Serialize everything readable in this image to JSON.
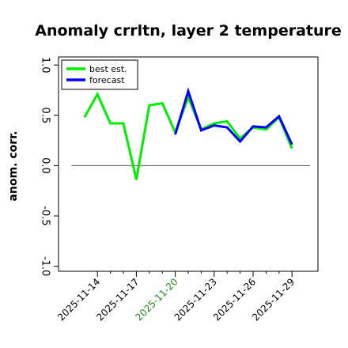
{
  "chart_data": {
    "type": "line",
    "title": "Anomaly crrltn, layer 2 temperature",
    "ylabel": "anom. corr.",
    "xlabel": "",
    "ylim": [
      -1.05,
      1.08
    ],
    "yticks": [
      -1.0,
      -0.5,
      0.0,
      0.5,
      1.0
    ],
    "ytick_labels": [
      "-1.0",
      "-0.5",
      "0.0",
      "0.5",
      "1.0"
    ],
    "xlim": [
      0,
      20
    ],
    "x": [
      2,
      3,
      4,
      5,
      6,
      7,
      8,
      9,
      10,
      11,
      12,
      13,
      14,
      15,
      16,
      17,
      18,
      19
    ],
    "xtick_labels": [
      {
        "pos": 3,
        "label": "2025-11-14",
        "color": "#000000"
      },
      {
        "pos": 6,
        "label": "2025-11-17",
        "color": "#000000"
      },
      {
        "pos": 9,
        "label": "2025-11-20",
        "color": "#228b22"
      },
      {
        "pos": 12,
        "label": "2025-11-23",
        "color": "#000000"
      },
      {
        "pos": 15,
        "label": "2025-11-26",
        "color": "#000000"
      },
      {
        "pos": 18,
        "label": "2025-11-29",
        "color": "#000000"
      }
    ],
    "zero_line": 0.0,
    "grid": false,
    "legend_position": "top-left",
    "series": [
      {
        "name": "best est.",
        "color": "#00ee00",
        "values": [
          0.48,
          0.71,
          0.42,
          0.42,
          -0.14,
          0.6,
          0.62,
          0.33,
          0.68,
          0.36,
          0.42,
          0.44,
          0.27,
          0.38,
          0.36,
          0.48,
          0.17,
          null
        ]
      },
      {
        "name": "forecast",
        "color": "#0000ff",
        "values": [
          null,
          null,
          null,
          null,
          null,
          null,
          null,
          0.31,
          0.74,
          0.35,
          0.4,
          0.38,
          0.24,
          0.39,
          0.38,
          0.49,
          0.21,
          null
        ]
      }
    ]
  }
}
